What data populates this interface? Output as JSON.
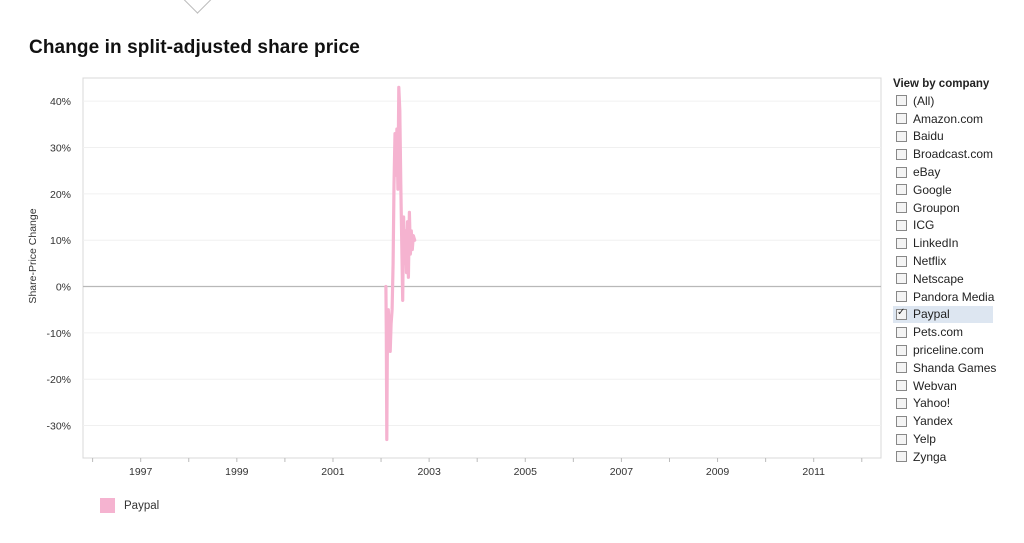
{
  "page": {
    "title": "Change in split-adjusted share price"
  },
  "filter": {
    "title": "View by company",
    "items": [
      {
        "label": "(All)",
        "checked": false
      },
      {
        "label": "Amazon.com",
        "checked": false
      },
      {
        "label": "Baidu",
        "checked": false
      },
      {
        "label": "Broadcast.com",
        "checked": false
      },
      {
        "label": "eBay",
        "checked": false
      },
      {
        "label": "Google",
        "checked": false
      },
      {
        "label": "Groupon",
        "checked": false
      },
      {
        "label": "ICG",
        "checked": false
      },
      {
        "label": "LinkedIn",
        "checked": false
      },
      {
        "label": "Netflix",
        "checked": false
      },
      {
        "label": "Netscape",
        "checked": false
      },
      {
        "label": "Pandora Media",
        "checked": false
      },
      {
        "label": "Paypal",
        "checked": true
      },
      {
        "label": "Pets.com",
        "checked": false
      },
      {
        "label": "priceline.com",
        "checked": false
      },
      {
        "label": "Shanda Games",
        "checked": false
      },
      {
        "label": "Webvan",
        "checked": false
      },
      {
        "label": "Yahoo!",
        "checked": false
      },
      {
        "label": "Yandex",
        "checked": false
      },
      {
        "label": "Yelp",
        "checked": false
      },
      {
        "label": "Zynga",
        "checked": false
      }
    ]
  },
  "legend": {
    "label": "Paypal",
    "color": "#f5b3d0"
  },
  "chart_data": {
    "type": "line",
    "title": "Change in split-adjusted share price",
    "xlabel": "",
    "ylabel": "Share-Price Change",
    "x_tick_labels": [
      "1997",
      "1999",
      "2001",
      "2003",
      "2005",
      "2007",
      "2009",
      "2011"
    ],
    "y_tick_labels": [
      "40%",
      "30%",
      "20%",
      "10%",
      "0%",
      "-10%",
      "-20%",
      "-30%"
    ],
    "xlim": [
      1995.8,
      2012.4
    ],
    "ylim": [
      -37,
      45
    ],
    "grid": true,
    "legend_position": "bottom-left",
    "series": [
      {
        "name": "Paypal",
        "color": "#f5b3d0",
        "points": [
          [
            2002.1,
            0
          ],
          [
            2002.11,
            -10
          ],
          [
            2002.12,
            -33
          ],
          [
            2002.13,
            -15
          ],
          [
            2002.15,
            -5
          ],
          [
            2002.17,
            -10
          ],
          [
            2002.19,
            -14
          ],
          [
            2002.21,
            -8
          ],
          [
            2002.23,
            -5
          ],
          [
            2002.25,
            5
          ],
          [
            2002.27,
            22
          ],
          [
            2002.29,
            33
          ],
          [
            2002.31,
            24
          ],
          [
            2002.33,
            34
          ],
          [
            2002.35,
            21
          ],
          [
            2002.37,
            43
          ],
          [
            2002.39,
            38
          ],
          [
            2002.41,
            22
          ],
          [
            2002.43,
            10
          ],
          [
            2002.45,
            -3
          ],
          [
            2002.47,
            15
          ],
          [
            2002.49,
            5
          ],
          [
            2002.51,
            12
          ],
          [
            2002.53,
            3
          ],
          [
            2002.55,
            14
          ],
          [
            2002.57,
            2
          ],
          [
            2002.59,
            16
          ],
          [
            2002.61,
            7
          ],
          [
            2002.63,
            12
          ],
          [
            2002.65,
            8
          ],
          [
            2002.67,
            11
          ],
          [
            2002.7,
            10
          ]
        ]
      }
    ]
  }
}
